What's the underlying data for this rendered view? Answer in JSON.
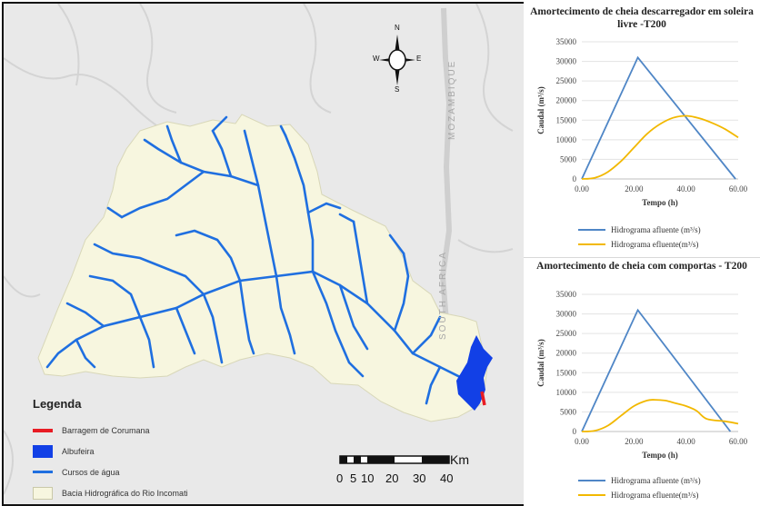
{
  "map": {
    "compass": {
      "n": "N",
      "s": "S",
      "e": "E",
      "w": "W"
    },
    "country_labels": [
      "MOZAMBIQUE",
      "SOUTH AFRICA"
    ],
    "legend": {
      "title": "Legenda",
      "items": [
        {
          "label": "Barragem de Corumana",
          "color": "#e81c24",
          "kind": "line"
        },
        {
          "label": "Albufeira",
          "color": "#1240e6",
          "kind": "box"
        },
        {
          "label": "Cursos de água",
          "color": "#1f6fe0",
          "kind": "line"
        },
        {
          "label": "Bacia Hidrográfica do Rio Incomati",
          "color": "#f7f6df",
          "kind": "box"
        }
      ]
    },
    "scale": {
      "ticks": [
        "0",
        "5",
        "10",
        "20",
        "30",
        "40"
      ],
      "unit": "Km"
    },
    "colors": {
      "basin": "#f7f6df",
      "river": "#1f6fe0",
      "reservoir": "#1240e6",
      "dam": "#e81c24",
      "background": "#e9e9e9"
    }
  },
  "chart_data": [
    {
      "type": "line",
      "title": "Amortecimento de cheia descarregador em soleira livre -T200",
      "xlabel": "Tempo (h)",
      "ylabel": "Caudal (m³/s)",
      "xlim": [
        0,
        60
      ],
      "ylim": [
        0,
        35000
      ],
      "x_ticks": [
        "0.00",
        "20.00",
        "40.00",
        "60.00"
      ],
      "y_ticks": [
        "0",
        "5000",
        "10000",
        "15000",
        "20000",
        "25000",
        "30000",
        "35000"
      ],
      "series": [
        {
          "name": "Hidrograma afluente (m³/s)",
          "color": "#4f86c6",
          "x": [
            0,
            21.5,
            59
          ],
          "y": [
            0,
            31000,
            0
          ]
        },
        {
          "name": "Hidrograma efluente(m³/s)",
          "color": "#f2b800",
          "x": [
            0,
            5,
            10,
            15,
            20,
            25,
            30,
            35,
            40,
            45,
            50,
            55,
            60
          ],
          "y": [
            0,
            300,
            1800,
            4500,
            8000,
            11500,
            14000,
            15600,
            16100,
            15500,
            14300,
            12700,
            10600
          ]
        }
      ]
    },
    {
      "type": "line",
      "title": "Amortecimento de cheia com comportas - T200",
      "xlabel": "Tempo (h)",
      "ylabel": "Caudal (m³/s)",
      "xlim": [
        0,
        60
      ],
      "ylim": [
        0,
        35000
      ],
      "x_ticks": [
        "0.00",
        "20.00",
        "40.00",
        "60.00"
      ],
      "y_ticks": [
        "0",
        "5000",
        "10000",
        "15000",
        "20000",
        "25000",
        "30000",
        "35000"
      ],
      "series": [
        {
          "name": "Hidrograma afluente (m³/s)",
          "color": "#4f86c6",
          "x": [
            0,
            21.5,
            57
          ],
          "y": [
            0,
            31000,
            0
          ]
        },
        {
          "name": "Hidrograma efluente(m³/s)",
          "color": "#f2b800",
          "x": [
            0,
            5,
            10,
            15,
            20,
            25,
            28,
            32,
            36,
            40,
            44,
            48,
            55,
            60
          ],
          "y": [
            0,
            200,
            1500,
            4000,
            6500,
            7900,
            8100,
            7900,
            7200,
            6500,
            5300,
            3200,
            2600,
            2000
          ]
        }
      ]
    }
  ]
}
